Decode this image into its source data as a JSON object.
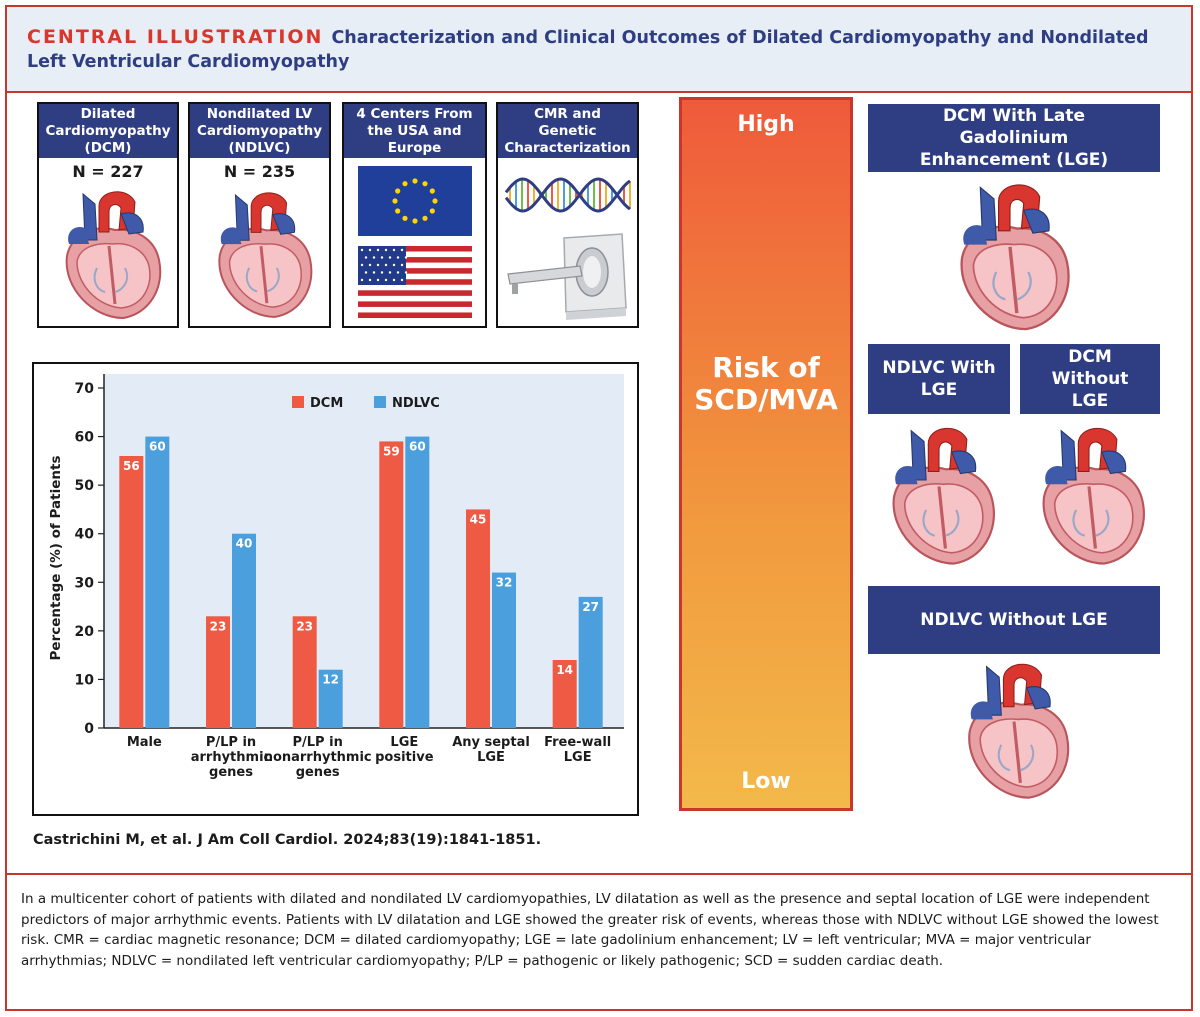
{
  "header": {
    "tag": "CENTRAL ILLUSTRATION",
    "title": "Characterization and Clinical Outcomes of Dilated Cardiomyopathy and Nondilated Left Ventricular Cardiomyopathy"
  },
  "panels": [
    {
      "title": "Dilated Cardiomyopathy (DCM)",
      "n": "N = 227"
    },
    {
      "title": "Nondilated LV Cardiomyopathy (NDLVC)",
      "n": "N = 235"
    },
    {
      "title": "4 Centers From the USA and Europe"
    },
    {
      "title": "CMR and Genetic Characterization"
    }
  ],
  "risk": {
    "high": "High",
    "label": "Risk of SCD/MVA",
    "low": "Low"
  },
  "risk_groups": [
    "DCM With Late Gadolinium Enhancement (LGE)",
    "NDLVC With LGE",
    "DCM Without LGE",
    "NDLVC Without LGE"
  ],
  "citation": "Castrichini M, et al. J Am Coll Cardiol. 2024;83(19):1841-1851.",
  "caption": "In a multicenter cohort of patients with dilated and nondilated LV cardiomyopathies, LV dilatation as well as the presence and septal location of LGE were independent predictors of major arrhythmic events. Patients with LV dilatation and LGE showed the greater risk of events, whereas those with NDLVC without LGE showed the lowest risk. CMR = cardiac magnetic resonance; DCM = dilated cardiomyopathy; LGE = late gadolinium enhancement; LV = left ventricular; MVA = major ventricular arrhythmias; NDLVC = nondilated left ventricular cardiomyopathy; P/LP = pathogenic or likely pathogenic; SCD = sudden cardiac death.",
  "colors": {
    "navy": "#2f3e83",
    "red": "#d8382c",
    "dcm": "#ee5a43",
    "ndlvc": "#4a9fdc",
    "plot_bg": "#e3ecf6"
  },
  "chart_data": {
    "type": "bar",
    "categories": [
      "Male",
      "P/LP in arrhythmic genes",
      "P/LP in nonarrhythmic genes",
      "LGE positive",
      "Any septal LGE",
      "Free-wall LGE"
    ],
    "category_lines": [
      [
        "Male"
      ],
      [
        "P/LP in",
        "arrhythmic",
        "genes"
      ],
      [
        "P/LP in",
        "nonarrhythmic",
        "genes"
      ],
      [
        "LGE",
        "positive"
      ],
      [
        "Any septal",
        "LGE"
      ],
      [
        "Free-wall",
        "LGE"
      ]
    ],
    "series": [
      {
        "name": "DCM",
        "values": [
          56,
          23,
          23,
          59,
          45,
          14
        ],
        "color": "#ee5a43"
      },
      {
        "name": "NDLVC",
        "values": [
          60,
          40,
          12,
          60,
          32,
          27
        ],
        "color": "#4a9fdc"
      }
    ],
    "ylabel": "Percentage (%) of Patients",
    "ylim": [
      0,
      70
    ],
    "yticks": [
      0,
      10,
      20,
      30,
      40,
      50,
      60,
      70
    ],
    "legend": "top-center",
    "grid": false
  }
}
